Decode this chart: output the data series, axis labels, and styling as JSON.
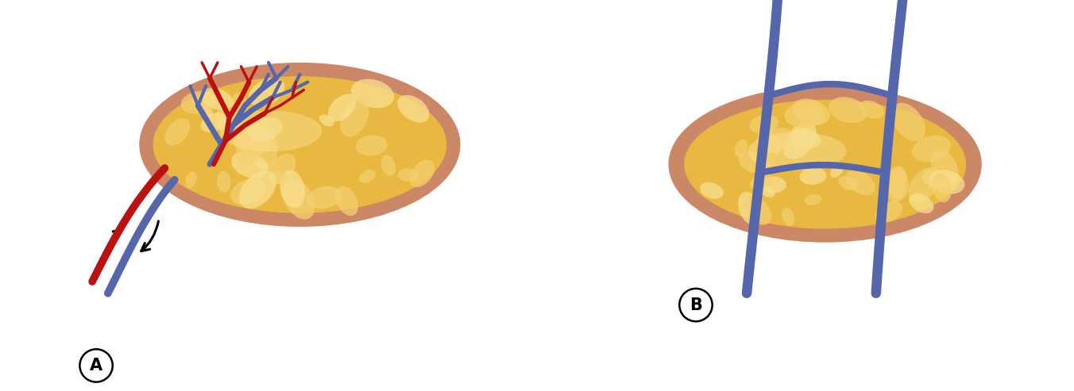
{
  "bg_color": "#ffffff",
  "skin_color": "#CC8866",
  "skin_color2": "#D4956A",
  "fat_color": "#E8B840",
  "fat_inner_color": "#F5D070",
  "fat_highlight": "#F8E090",
  "artery_color": "#BB1111",
  "vein_color": "#5566AA",
  "arrow_color": "#111111",
  "label_color": "#000000",
  "label_A": "A",
  "label_B": "B",
  "fig_width": 13.52,
  "fig_height": 4.93
}
